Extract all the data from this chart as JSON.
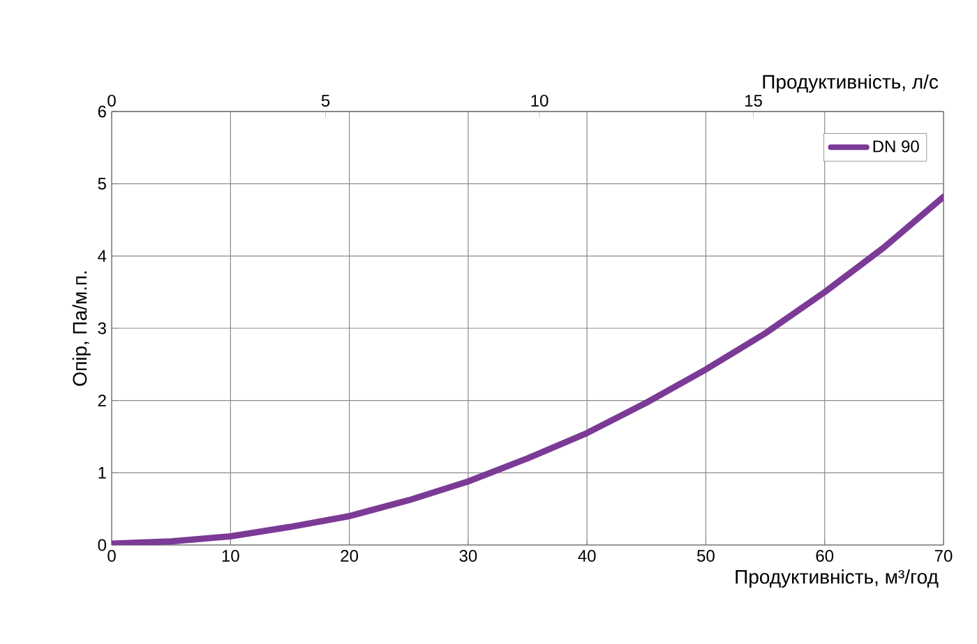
{
  "chart_data": {
    "type": "line",
    "xlabel": "Продуктивність, м³/год",
    "ylabel": "Опір, Па/м.п.",
    "x2label": "Продуктивність, л/с",
    "x": [
      0,
      5,
      10,
      15,
      20,
      25,
      30,
      35,
      40,
      45,
      50,
      55,
      60,
      65,
      70
    ],
    "series": [
      {
        "name": "DN 90",
        "color": "#7b3a96",
        "values": [
          0.02,
          0.05,
          0.12,
          0.25,
          0.4,
          0.62,
          0.88,
          1.2,
          1.55,
          1.97,
          2.43,
          2.93,
          3.5,
          4.12,
          4.82
        ]
      }
    ],
    "xlim": [
      0,
      70
    ],
    "xticks": [
      0,
      10,
      20,
      30,
      40,
      50,
      60,
      70
    ],
    "ylim": [
      0,
      6
    ],
    "yticks": [
      0,
      1,
      2,
      3,
      4,
      5,
      6
    ],
    "x2lim": [
      0,
      19.444
    ],
    "x2ticks": [
      0,
      5,
      10,
      15
    ],
    "grid": true,
    "legend": "top right",
    "marker": "none",
    "line_style": "solid"
  }
}
